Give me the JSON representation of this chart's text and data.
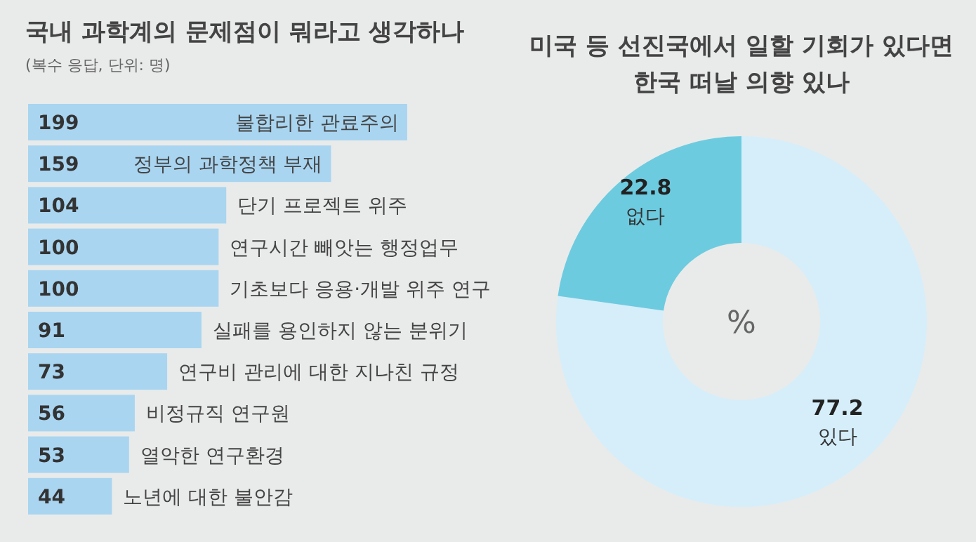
{
  "chart_data": [
    {
      "type": "bar",
      "orientation": "horizontal",
      "title": "국내 과학계의 문제점이 뭐라고 생각하나",
      "subtitle": "(복수 응답, 단위: 명)",
      "categories": [
        "불합리한 관료주의",
        "정부의 과학정책 부재",
        "단기 프로젝트 위주",
        "연구시간 빼앗는 행정업무",
        "기초보다 응용·개발 위주 연구",
        "실패를 용인하지 않는 분위기",
        "연구비 관리에 대한 지나친 규정",
        "비정규직 연구원",
        "열악한 연구환경",
        "노년에 대한 불안감"
      ],
      "values": [
        199,
        159,
        104,
        100,
        100,
        91,
        73,
        56,
        53,
        44
      ],
      "color": "#a9d5f1",
      "data_labels": true
    },
    {
      "type": "donut",
      "title": "미국 등 선진국에서 일할 기회가 있다면\n한국 떠날 의향 있나",
      "categories": [
        "있다",
        "없다"
      ],
      "values": [
        77.2,
        22.8
      ],
      "colors": [
        "#d5eefa",
        "#6dcbe0"
      ],
      "data_labels": true,
      "annotations": [
        "%"
      ]
    }
  ]
}
